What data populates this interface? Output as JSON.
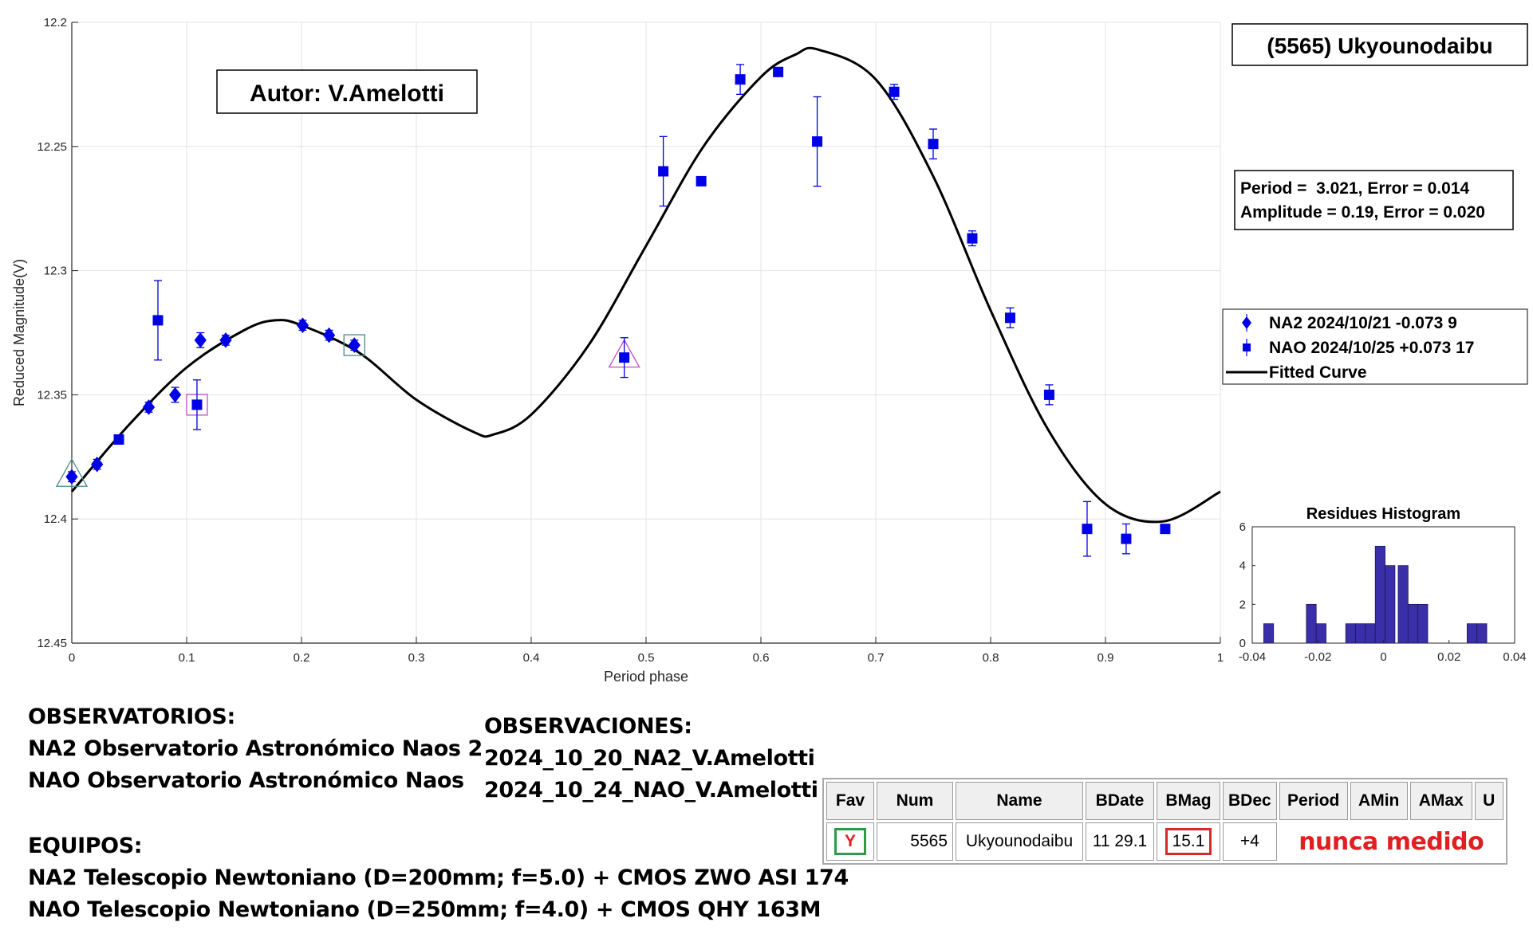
{
  "chart_data": [
    {
      "type": "scatter",
      "title": "(5565) Ukyounodaibu",
      "xlabel": "Period phase",
      "ylabel": "Reduced Magnitude(V)",
      "xlim": [
        0,
        1
      ],
      "ylim": [
        12.2,
        12.45
      ],
      "y_reversed": true,
      "grid": true,
      "xticks": [
        "0",
        "0.1",
        "0.2",
        "0.3",
        "0.4",
        "0.5",
        "0.6",
        "0.7",
        "0.8",
        "0.9",
        "1"
      ],
      "yticks": [
        "12.2",
        "12.25",
        "12.3",
        "12.35",
        "12.4",
        "12.45"
      ],
      "author_label": "Autor: V.Amelotti",
      "fit_info": [
        "Period =  3.021, Error = 0.014",
        "Amplitude = 0.19, Error = 0.020"
      ],
      "legend_position": "right",
      "legend": [
        {
          "marker": "diamond",
          "label": "NA2 2024/10/21   -0.073    9"
        },
        {
          "marker": "square",
          "label": "NAO 2024/10/25   +0.073    17"
        },
        {
          "marker": "line",
          "label": "Fitted Curve"
        }
      ],
      "series": [
        {
          "name": "NA2 2024/10/21",
          "marker": "diamond",
          "color": "#0000e6",
          "points": [
            {
              "x": 0.0,
              "y": 12.383,
              "err": 0.002
            },
            {
              "x": 0.022,
              "y": 12.378,
              "err": 0.002
            },
            {
              "x": 0.067,
              "y": 12.355,
              "err": 0.002
            },
            {
              "x": 0.09,
              "y": 12.35,
              "err": 0.003
            },
            {
              "x": 0.112,
              "y": 12.328,
              "err": 0.003
            },
            {
              "x": 0.134,
              "y": 12.328,
              "err": 0.002
            },
            {
              "x": 0.201,
              "y": 12.322,
              "err": 0.002
            },
            {
              "x": 0.224,
              "y": 12.326,
              "err": 0.002
            },
            {
              "x": 0.246,
              "y": 12.33,
              "err": 0.002
            }
          ]
        },
        {
          "name": "NAO 2024/10/25",
          "marker": "square",
          "color": "#0000e6",
          "points": [
            {
              "x": 0.041,
              "y": 12.368,
              "err": 0.001
            },
            {
              "x": 0.075,
              "y": 12.32,
              "err": 0.016
            },
            {
              "x": 0.109,
              "y": 12.354,
              "err": 0.01
            },
            {
              "x": 0.481,
              "y": 12.335,
              "err": 0.008
            },
            {
              "x": 0.515,
              "y": 12.26,
              "err": 0.014
            },
            {
              "x": 0.548,
              "y": 12.264,
              "err": 0.001
            },
            {
              "x": 0.582,
              "y": 12.223,
              "err": 0.006
            },
            {
              "x": 0.615,
              "y": 12.22,
              "err": 0.001
            },
            {
              "x": 0.649,
              "y": 12.248,
              "err": 0.018
            },
            {
              "x": 0.716,
              "y": 12.228,
              "err": 0.003
            },
            {
              "x": 0.75,
              "y": 12.249,
              "err": 0.006
            },
            {
              "x": 0.784,
              "y": 12.287,
              "err": 0.003
            },
            {
              "x": 0.817,
              "y": 12.319,
              "err": 0.004
            },
            {
              "x": 0.851,
              "y": 12.35,
              "err": 0.004
            },
            {
              "x": 0.884,
              "y": 12.404,
              "err": 0.011
            },
            {
              "x": 0.918,
              "y": 12.408,
              "err": 0.006
            },
            {
              "x": 0.952,
              "y": 12.404,
              "err": 0.001
            }
          ]
        }
      ],
      "highlighted_points": [
        {
          "x": 0.0,
          "y": 12.383,
          "shape": "triangle",
          "color": "#4a8a8a"
        },
        {
          "x": 0.109,
          "y": 12.354,
          "shape": "square",
          "color": "#c04cc0"
        },
        {
          "x": 0.246,
          "y": 12.33,
          "shape": "square",
          "color": "#4a8a8a"
        },
        {
          "x": 0.481,
          "y": 12.335,
          "shape": "triangle",
          "color": "#c04cc0"
        }
      ],
      "fitted_curve": {
        "name": "Fitted Curve",
        "points": [
          [
            0.0,
            12.389
          ],
          [
            0.05,
            12.362
          ],
          [
            0.1,
            12.339
          ],
          [
            0.15,
            12.324
          ],
          [
            0.177,
            12.32
          ],
          [
            0.2,
            12.322
          ],
          [
            0.25,
            12.333
          ],
          [
            0.3,
            12.352
          ],
          [
            0.35,
            12.365
          ],
          [
            0.367,
            12.366
          ],
          [
            0.4,
            12.358
          ],
          [
            0.45,
            12.33
          ],
          [
            0.5,
            12.29
          ],
          [
            0.55,
            12.25
          ],
          [
            0.6,
            12.222
          ],
          [
            0.63,
            12.213
          ],
          [
            0.65,
            12.211
          ],
          [
            0.7,
            12.223
          ],
          [
            0.75,
            12.262
          ],
          [
            0.8,
            12.316
          ],
          [
            0.85,
            12.364
          ],
          [
            0.9,
            12.394
          ],
          [
            0.95,
            12.401
          ],
          [
            1.0,
            12.389
          ]
        ]
      }
    },
    {
      "type": "bar",
      "title": "Residues Histogram",
      "xlim": [
        -0.04,
        0.04
      ],
      "ylim": [
        0,
        6
      ],
      "xticks": [
        "-0.04",
        "-0.02",
        "0",
        "0.02",
        "0.04"
      ],
      "yticks": [
        "0",
        "2",
        "4",
        "6"
      ],
      "color": "#3a2fa8",
      "bins": [
        {
          "x": -0.035,
          "count": 1
        },
        {
          "x": -0.022,
          "count": 2
        },
        {
          "x": -0.019,
          "count": 1
        },
        {
          "x": -0.01,
          "count": 1
        },
        {
          "x": -0.007,
          "count": 1
        },
        {
          "x": -0.004,
          "count": 1
        },
        {
          "x": -0.001,
          "count": 5
        },
        {
          "x": 0.002,
          "count": 4
        },
        {
          "x": 0.006,
          "count": 4
        },
        {
          "x": 0.009,
          "count": 2
        },
        {
          "x": 0.012,
          "count": 2
        },
        {
          "x": 0.027,
          "count": 1
        },
        {
          "x": 0.03,
          "count": 1
        }
      ]
    }
  ],
  "observatorios": {
    "heading": "OBSERVATORIOS:",
    "line1": "NA2 Observatorio Astronómico Naos 2",
    "line2": "NAO Observatorio Astronómico Naos"
  },
  "observaciones": {
    "heading": "OBSERVACIONES:",
    "line1": "2024_10_20_NA2_V.Amelotti",
    "line2": "2024_10_24_NAO_V.Amelotti"
  },
  "equipos": {
    "heading": "EQUIPOS:",
    "line1": "NA2 Telescopio Newtoniano (D=200mm; f=5.0) + CMOS ZWO ASI 174",
    "line2": "NAO Telescopio Newtoniano (D=250mm; f=4.0) + CMOS QHY 163M"
  },
  "table": {
    "headers": [
      "Fav",
      "Num",
      "Name",
      "BDate",
      "BMag",
      "BDec",
      "Period",
      "AMin",
      "AMax",
      "U"
    ],
    "row": {
      "fav": "Y",
      "num": "5565",
      "name": "Ukyounodaibu",
      "bdate": "11 29.1",
      "bmag": "15.1",
      "bdec": "+4",
      "note": "nunca medido"
    }
  }
}
